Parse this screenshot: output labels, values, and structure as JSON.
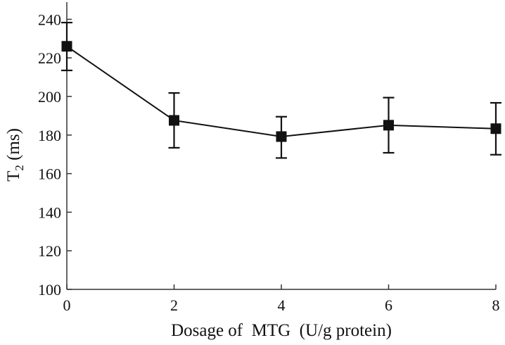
{
  "chart_data": {
    "type": "line",
    "title": "",
    "xlabel": "Dosage of  MTG  (U/g protein)",
    "ylabel_main": "T",
    "ylabel_sub": "2",
    "ylabel_unit": " (ms)",
    "xlim": [
      0,
      8
    ],
    "ylim": [
      100,
      250
    ],
    "xticks": [
      0,
      2,
      4,
      6,
      8
    ],
    "yticks": [
      100,
      120,
      140,
      160,
      180,
      200,
      220,
      240
    ],
    "grid": false,
    "marker": "square",
    "color": "#111111",
    "series": [
      {
        "x": [
          0,
          2,
          4,
          6,
          8
        ],
        "y": [
          226,
          187.6,
          179.2,
          185.1,
          183.3
        ],
        "err_low": [
          213.5,
          173.4,
          168.1,
          170.8,
          169.8
        ],
        "err_high": [
          238.3,
          201.8,
          189.5,
          199.4,
          196.7
        ]
      }
    ]
  }
}
